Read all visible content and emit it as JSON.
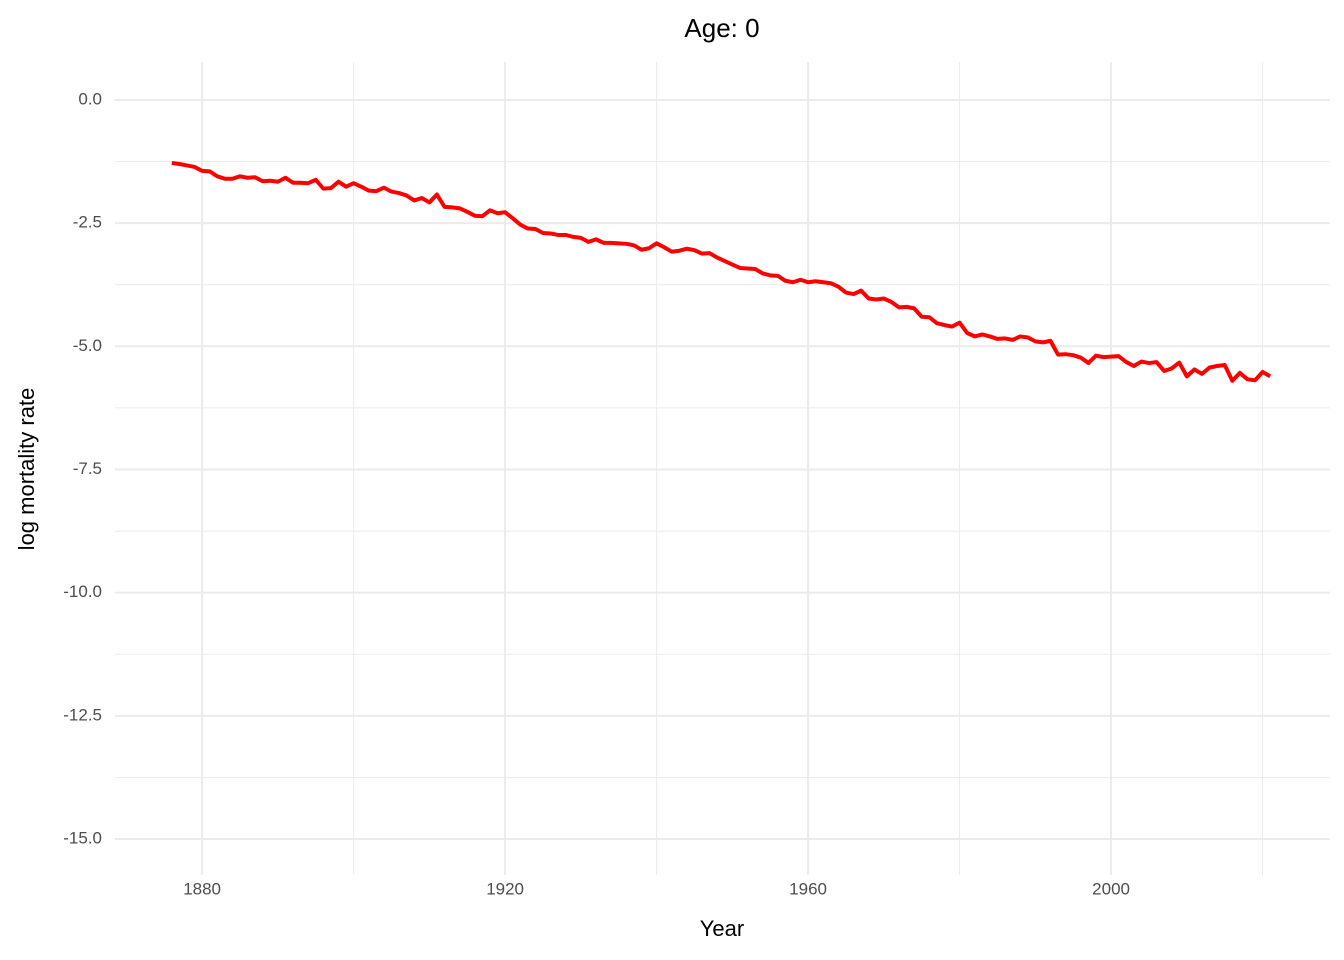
{
  "chart_data": {
    "type": "line",
    "title": "Age: 0",
    "x_label": "Year",
    "y_label": "log mortality rate",
    "xlim": [
      1868.5,
      2028.9
    ],
    "ylim": [
      -15.73,
      0.77
    ],
    "xticks": [
      1880,
      1920,
      1960,
      2000
    ],
    "yticks": [
      {
        "value": -15,
        "label": "-15.0"
      },
      {
        "value": -12.5,
        "label": "-12.5"
      },
      {
        "value": -10,
        "label": "-10.0"
      },
      {
        "value": -7.5,
        "label": "-7.5"
      },
      {
        "value": -5,
        "label": "-5.0"
      },
      {
        "value": -2.5,
        "label": "-2.5"
      },
      {
        "value": 0,
        "label": "0.0"
      }
    ],
    "x_minor_grid": [
      1900,
      1940,
      1980,
      2020
    ],
    "y_minor_grid": [
      -13.75,
      -11.25,
      -8.75,
      -6.25,
      -3.75,
      -1.25
    ],
    "grid": true,
    "x": [
      1876,
      1877,
      1878,
      1879,
      1880,
      1881,
      1882,
      1883,
      1884,
      1885,
      1886,
      1887,
      1888,
      1889,
      1890,
      1891,
      1892,
      1893,
      1894,
      1895,
      1896,
      1897,
      1898,
      1899,
      1900,
      1901,
      1902,
      1903,
      1904,
      1905,
      1906,
      1907,
      1908,
      1909,
      1910,
      1911,
      1912,
      1913,
      1914,
      1915,
      1916,
      1917,
      1918,
      1919,
      1920,
      1921,
      1922,
      1923,
      1924,
      1925,
      1926,
      1927,
      1928,
      1929,
      1930,
      1931,
      1932,
      1933,
      1934,
      1935,
      1936,
      1937,
      1938,
      1939,
      1940,
      1941,
      1942,
      1943,
      1944,
      1945,
      1946,
      1947,
      1948,
      1949,
      1950,
      1951,
      1952,
      1953,
      1954,
      1955,
      1956,
      1957,
      1958,
      1959,
      1960,
      1961,
      1962,
      1963,
      1964,
      1965,
      1966,
      1967,
      1968,
      1969,
      1970,
      1971,
      1972,
      1973,
      1974,
      1975,
      1976,
      1977,
      1978,
      1979,
      1980,
      1981,
      1982,
      1983,
      1984,
      1985,
      1986,
      1987,
      1988,
      1989,
      1990,
      1991,
      1992,
      1993,
      1994,
      1995,
      1996,
      1997,
      1998,
      1999,
      2000,
      2001,
      2002,
      2003,
      2004,
      2005,
      2006,
      2007,
      2008,
      2009,
      2010,
      2011,
      2012,
      2013,
      2014,
      2015,
      2016,
      2017,
      2018,
      2019,
      2020,
      2021
    ],
    "series": [
      {
        "color": "#ff0000",
        "values": [
          -1.28,
          -1.3,
          -1.33,
          -1.36,
          -1.44,
          -1.45,
          -1.55,
          -1.6,
          -1.6,
          -1.55,
          -1.58,
          -1.57,
          -1.65,
          -1.64,
          -1.66,
          -1.58,
          -1.68,
          -1.68,
          -1.69,
          -1.62,
          -1.8,
          -1.79,
          -1.66,
          -1.76,
          -1.69,
          -1.76,
          -1.84,
          -1.85,
          -1.78,
          -1.86,
          -1.89,
          -1.94,
          -2.04,
          -1.99,
          -2.08,
          -1.92,
          -2.17,
          -2.18,
          -2.2,
          -2.27,
          -2.35,
          -2.36,
          -2.24,
          -2.3,
          -2.28,
          -2.4,
          -2.53,
          -2.61,
          -2.62,
          -2.7,
          -2.71,
          -2.74,
          -2.74,
          -2.78,
          -2.8,
          -2.88,
          -2.83,
          -2.9,
          -2.9,
          -2.91,
          -2.92,
          -2.95,
          -3.04,
          -3.01,
          -2.91,
          -2.99,
          -3.08,
          -3.06,
          -3.02,
          -3.05,
          -3.12,
          -3.11,
          -3.2,
          -3.27,
          -3.34,
          -3.41,
          -3.42,
          -3.43,
          -3.52,
          -3.56,
          -3.57,
          -3.67,
          -3.7,
          -3.65,
          -3.7,
          -3.68,
          -3.7,
          -3.72,
          -3.79,
          -3.91,
          -3.94,
          -3.87,
          -4.03,
          -4.05,
          -4.03,
          -4.1,
          -4.21,
          -4.2,
          -4.23,
          -4.4,
          -4.41,
          -4.53,
          -4.57,
          -4.6,
          -4.52,
          -4.73,
          -4.8,
          -4.76,
          -4.8,
          -4.85,
          -4.84,
          -4.87,
          -4.8,
          -4.82,
          -4.9,
          -4.92,
          -4.89,
          -5.17,
          -5.16,
          -5.18,
          -5.23,
          -5.34,
          -5.19,
          -5.22,
          -5.21,
          -5.2,
          -5.32,
          -5.4,
          -5.31,
          -5.34,
          -5.32,
          -5.5,
          -5.45,
          -5.33,
          -5.61,
          -5.47,
          -5.56,
          -5.43,
          -5.4,
          -5.38,
          -5.7,
          -5.54,
          -5.67,
          -5.69,
          -5.52,
          -5.61
        ]
      }
    ]
  }
}
